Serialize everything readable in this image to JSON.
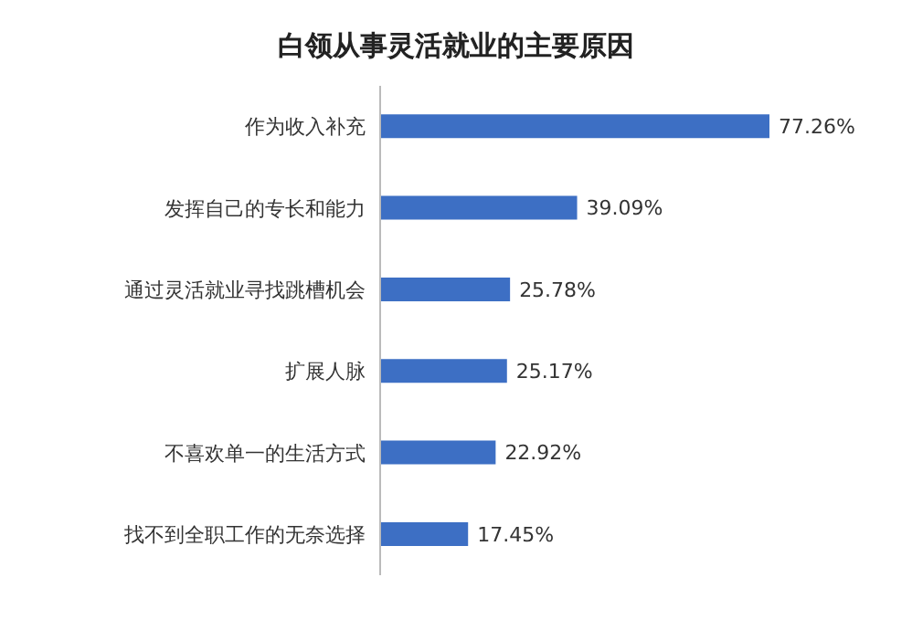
{
  "chart_data": {
    "type": "bar",
    "orientation": "horizontal",
    "title": "白领从事灵活就业的主要原因",
    "categories": [
      "作为收入补充",
      "发挥自己的专长和能力",
      "通过灵活就业寻找跳槽机会",
      "扩展人脉",
      "不喜欢单一的生活方式",
      "找不到全职工作的无奈选择"
    ],
    "values": [
      77.26,
      39.09,
      25.78,
      25.17,
      22.92,
      17.45
    ],
    "value_labels": [
      "77.26%",
      "39.09%",
      "25.78%",
      "25.17%",
      "22.92%",
      "17.45%"
    ],
    "color": "#3d6fc4"
  }
}
